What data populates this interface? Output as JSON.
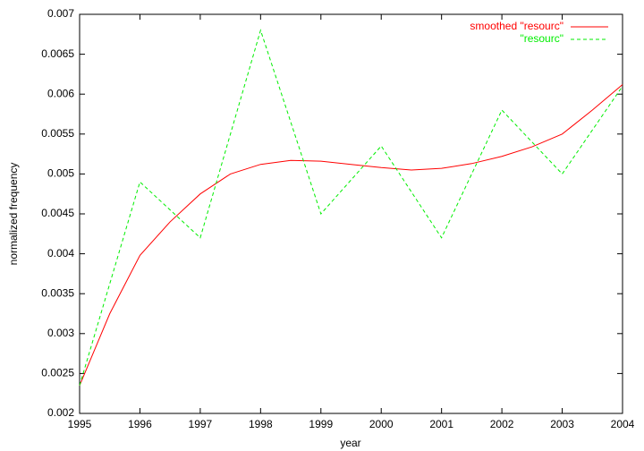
{
  "chart_data": {
    "type": "line",
    "xlabel": "year",
    "ylabel": "normalized frequency",
    "xlim": [
      1995,
      2004
    ],
    "xticks": [
      1995,
      1996,
      1997,
      1998,
      1999,
      2000,
      2001,
      2002,
      2003,
      2004
    ],
    "ylim": [
      0.002,
      0.007
    ],
    "yticks": [
      0.002,
      0.0025,
      0.003,
      0.0035,
      0.004,
      0.0045,
      0.005,
      0.0055,
      0.006,
      0.0065,
      0.007
    ],
    "legend": "top-right",
    "series": [
      {
        "name": "smoothed \"resourc\"",
        "color": "#ff0000",
        "style": "solid",
        "x": [
          1995,
          1995.5,
          1996,
          1996.5,
          1997,
          1997.5,
          1998,
          1998.5,
          1999,
          1999.5,
          2000,
          2000.5,
          2001,
          2001.5,
          2002,
          2002.5,
          2003,
          2003.5,
          2004
        ],
        "values": [
          0.00235,
          0.00325,
          0.00398,
          0.0044,
          0.00475,
          0.005,
          0.00512,
          0.00517,
          0.00516,
          0.00512,
          0.00508,
          0.00505,
          0.00507,
          0.00513,
          0.00522,
          0.00534,
          0.0055,
          0.0058,
          0.00612
        ]
      },
      {
        "name": "\"resourc\"",
        "color": "#00ee00",
        "style": "dashed",
        "x": [
          1995,
          1996,
          1997,
          1998,
          1999,
          2000,
          2001,
          2002,
          2003,
          2004
        ],
        "values": [
          0.00235,
          0.0049,
          0.0042,
          0.0068,
          0.0045,
          0.00535,
          0.0042,
          0.0058,
          0.005,
          0.0061
        ]
      }
    ]
  }
}
